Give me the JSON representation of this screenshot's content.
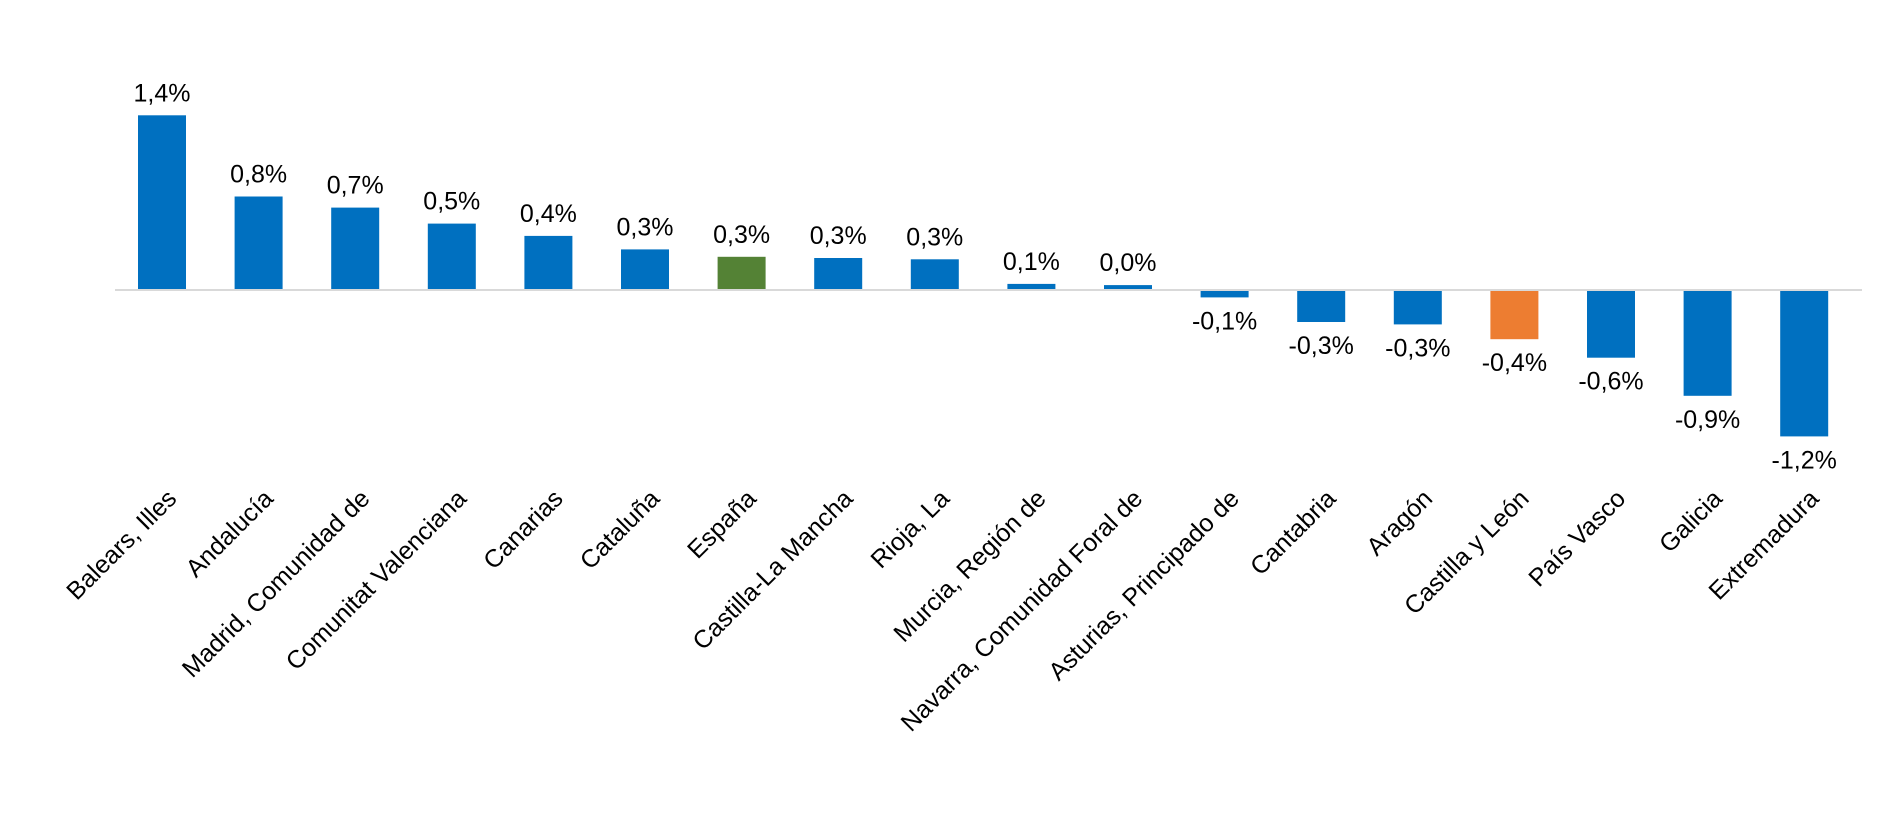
{
  "chart_data": {
    "type": "bar",
    "title": "",
    "xlabel": "",
    "ylabel": "",
    "categories": [
      "Balears, Illes",
      "Andalucía",
      "Madrid, Comunidad de",
      "Comunitat Valenciana",
      "Canarias",
      "Cataluña",
      "España",
      "Castilla-La Mancha",
      "Rioja, La",
      "Murcia, Región de",
      "Navarra, Comunidad Foral de",
      "Asturias, Principado de",
      "Cantabria",
      "Aragón",
      "Castilla y León",
      "País Vasco",
      "Galicia",
      "Extremadura"
    ],
    "values": [
      1.42,
      0.76,
      0.67,
      0.54,
      0.44,
      0.33,
      0.27,
      0.26,
      0.25,
      0.05,
      0.04,
      -0.06,
      -0.26,
      -0.28,
      -0.4,
      -0.55,
      -0.86,
      -1.19
    ],
    "value_labels": [
      "1,4%",
      "0,8%",
      "0,7%",
      "0,5%",
      "0,4%",
      "0,3%",
      "0,3%",
      "0,3%",
      "0,3%",
      "0,1%",
      "0,0%",
      "-0,1%",
      "-0,3%",
      "-0,3%",
      "-0,4%",
      "-0,6%",
      "-0,9%",
      "-1,2%"
    ],
    "ylim": [
      -1.4,
      1.6
    ],
    "grid": false,
    "legend": "none",
    "colors": {
      "default": "#0070C0",
      "highlight_spain": "#548235",
      "highlight_region": "#ED7D31",
      "axis": "#D9D9D9"
    },
    "bar_color_keys": [
      "default",
      "default",
      "default",
      "default",
      "default",
      "default",
      "highlight_spain",
      "default",
      "default",
      "default",
      "default",
      "default",
      "default",
      "default",
      "highlight_region",
      "default",
      "default",
      "default"
    ]
  }
}
